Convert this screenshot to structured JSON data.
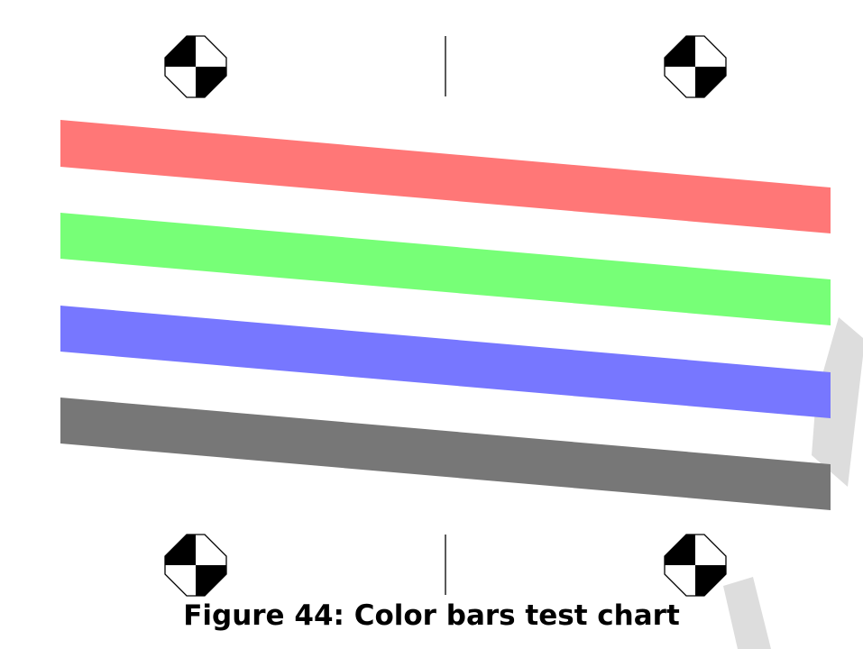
{
  "caption": "Figure 44: Color bars test chart",
  "bars": [
    {
      "name": "red",
      "color": "#ff7777"
    },
    {
      "name": "green",
      "color": "#77ff77"
    },
    {
      "name": "blue",
      "color": "#7777ff"
    },
    {
      "name": "gray",
      "color": "#777777"
    }
  ],
  "watermark_color": "#dddddd",
  "registration_mark_count": 4,
  "center_line_count": 2
}
